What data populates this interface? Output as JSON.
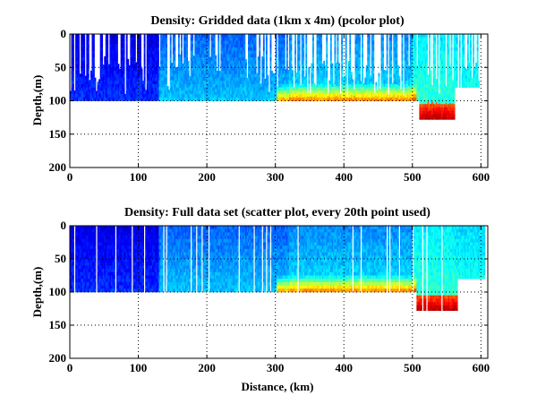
{
  "chart_data": [
    {
      "type": "heatmap",
      "style": "pcolor",
      "title": "Density: Gridded data (1km x 4m) (pcolor plot)",
      "xlabel": "",
      "ylabel": "Depth,(m)",
      "xlim": [
        0,
        610
      ],
      "ylim": [
        200,
        0
      ],
      "y_reversed": true,
      "xticks": [
        0,
        100,
        200,
        300,
        400,
        500,
        600
      ],
      "yticks": [
        0,
        50,
        100,
        150,
        200
      ],
      "grid": true,
      "colormap": "jet",
      "data_extent": {
        "main_depth_max": 100,
        "deep_segment": {
          "x": [
            510,
            560
          ],
          "depth_max": 128
        },
        "shallow_segment": {
          "x": [
            560,
            600
          ],
          "depth_max": 80
        }
      },
      "regions": [
        {
          "x": [
            0,
            130
          ],
          "depth": [
            0,
            100
          ],
          "level": "low (blue)"
        },
        {
          "x": [
            130,
            320
          ],
          "depth": [
            0,
            100
          ],
          "level": "low-mid (light blue)"
        },
        {
          "x": [
            320,
            500
          ],
          "depth": [
            70,
            100
          ],
          "level": "high (yellow-orange)"
        },
        {
          "x": [
            510,
            560
          ],
          "depth": [
            105,
            128
          ],
          "level": "very high (red)"
        },
        {
          "x": [
            560,
            600
          ],
          "depth": [
            0,
            80
          ],
          "level": "mid (cyan-green)"
        }
      ]
    },
    {
      "type": "scatter",
      "style": "scatter (every 20th point)",
      "title": "Density: Full data set (scatter plot, every 20th point used)",
      "xlabel": "Distance, (km)",
      "ylabel": "Depth,(m)",
      "xlim": [
        0,
        610
      ],
      "ylim": [
        200,
        0
      ],
      "y_reversed": true,
      "xticks": [
        0,
        100,
        200,
        300,
        400,
        500,
        600
      ],
      "yticks": [
        0,
        50,
        100,
        150,
        200
      ],
      "grid": true,
      "colormap": "jet",
      "data_extent": {
        "main_depth_max": 100,
        "deep_segment": {
          "x": [
            505,
            565
          ],
          "depth_max": 128
        },
        "shallow_segment": {
          "x": [
            565,
            605
          ],
          "depth_max": 80
        }
      },
      "regions": [
        {
          "x": [
            0,
            130
          ],
          "depth": [
            0,
            100
          ],
          "level": "low (dark blue)"
        },
        {
          "x": [
            130,
            320
          ],
          "depth": [
            0,
            100
          ],
          "level": "low-mid (light blue)"
        },
        {
          "x": [
            320,
            500
          ],
          "depth": [
            75,
            100
          ],
          "level": "high (orange-red)"
        },
        {
          "x": [
            505,
            565
          ],
          "depth": [
            105,
            128
          ],
          "level": "very high (red)"
        },
        {
          "x": [
            565,
            605
          ],
          "depth": [
            0,
            80
          ],
          "level": "mid (cyan-green)"
        }
      ]
    }
  ]
}
